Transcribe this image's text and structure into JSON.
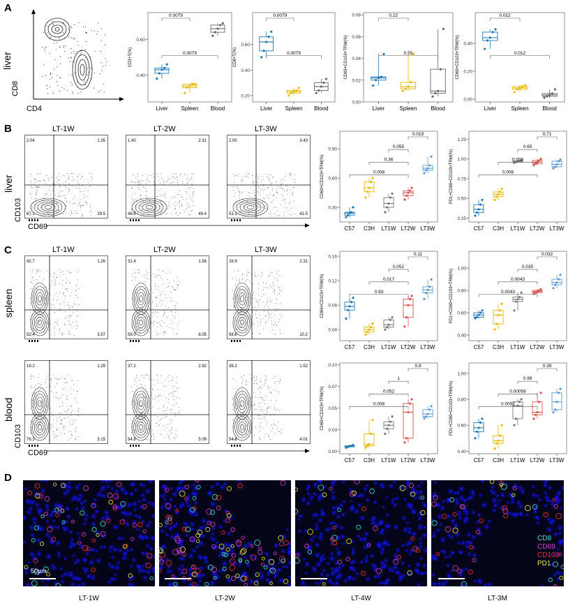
{
  "panels": [
    "A",
    "B",
    "C",
    "D"
  ],
  "axis_labels": {
    "liver": "liver",
    "spleen": "spleen",
    "blood": "blood",
    "cd8": "CD8",
    "cd4": "CD4",
    "cd103": "CD103",
    "cd69": "CD69"
  },
  "flow_titles": [
    "LT-1W",
    "LT-2W",
    "LT-3W"
  ],
  "flowB": [
    [
      "2.04",
      "1.35",
      "67.1",
      "29.5"
    ],
    [
      "1.40",
      "2.31",
      "46.9",
      "49.4"
    ],
    [
      "2.00",
      "3.43",
      "53.1",
      "41.5"
    ]
  ],
  "flowC_spleen": [
    [
      "42.7",
      "1.26",
      "52.4",
      "3.57"
    ],
    [
      "31.4",
      "1.56",
      "59.0",
      "8.05"
    ],
    [
      "28.9",
      "2.31",
      "58.6",
      "10.2"
    ]
  ],
  "flowC_blood": [
    [
      "19.2",
      "1.29",
      "76.3",
      "3.15"
    ],
    [
      "37.2",
      "2.92",
      "54.8",
      "5.09"
    ],
    [
      "39.2",
      "1.52",
      "54.8",
      "4.01"
    ]
  ],
  "micro": {
    "captions": [
      "LT-1W",
      "LT-2W",
      "LT-4W",
      "LT-3M"
    ],
    "scale": "50μm",
    "legend": [
      {
        "label": "CD8",
        "color": "#4fe0d8"
      },
      {
        "label": "CD69",
        "color": "#d040d0"
      },
      {
        "label": "CD103",
        "color": "#e83030"
      },
      {
        "label": "PD1",
        "color": "#e8e840"
      }
    ]
  },
  "chart_data": [
    {
      "type": "box",
      "panel": "A",
      "ylabel": "CD3+T(%)",
      "categories": [
        "Liver",
        "Spleen",
        "Blood"
      ],
      "ylim": [
        0.25,
        0.75
      ],
      "ticks": [
        0.4,
        0.6
      ],
      "colors": [
        "#1f77b4",
        "#e6b800",
        "#666666"
      ],
      "values": [
        [
          0.38,
          0.41,
          0.43,
          0.44,
          0.46
        ],
        [
          0.3,
          0.33,
          0.34,
          0.35,
          0.35
        ],
        [
          0.62,
          0.64,
          0.66,
          0.68,
          0.69
        ]
      ],
      "brackets": [
        {
          "from": 0,
          "to": 2,
          "label": "0.0079"
        },
        {
          "from": 0,
          "to": 1,
          "label": "0.0079"
        }
      ]
    },
    {
      "type": "box",
      "panel": "A",
      "ylabel": "CD8+T(%)",
      "categories": [
        "Liver",
        "Spleen",
        "Blood"
      ],
      "ylim": [
        0.15,
        0.85
      ],
      "ticks": [
        0.2,
        0.4,
        0.6
      ],
      "colors": [
        "#1f77b4",
        "#e6b800",
        "#666666"
      ],
      "values": [
        [
          0.5,
          0.55,
          0.62,
          0.66,
          0.7
        ],
        [
          0.2,
          0.22,
          0.23,
          0.24,
          0.26
        ],
        [
          0.22,
          0.24,
          0.27,
          0.3,
          0.33
        ]
      ],
      "brackets": [
        {
          "from": 0,
          "to": 2,
          "label": "0.0079"
        },
        {
          "from": 0,
          "to": 1,
          "label": "0.0079"
        }
      ]
    },
    {
      "type": "box",
      "panel": "A",
      "ylabel": "CD69+CD103+TRM(%)",
      "categories": [
        "Liver",
        "Spleen",
        "Blood"
      ],
      "ylim": [
        0.0,
        0.082
      ],
      "ticks": [
        0.0,
        0.02,
        0.04,
        0.06,
        0.08
      ],
      "colors": [
        "#1f77b4",
        "#e6b800",
        "#666666"
      ],
      "values": [
        [
          0.015,
          0.02,
          0.022,
          0.023,
          0.044
        ],
        [
          0.01,
          0.012,
          0.014,
          0.018,
          0.044
        ],
        [
          0.005,
          0.008,
          0.01,
          0.03,
          0.067
        ]
      ],
      "brackets": [
        {
          "from": 0,
          "to": 2,
          "label": "0.55"
        },
        {
          "from": 0,
          "to": 1,
          "label": "0.22"
        }
      ]
    },
    {
      "type": "box",
      "panel": "A",
      "ylabel": "CD69+CD103+TRM(%)",
      "categories": [
        "Liver",
        "Spleen",
        "Blood"
      ],
      "ylim": [
        -0.02,
        0.62
      ],
      "ticks": [
        0.0,
        0.2,
        0.4
      ],
      "colors": [
        "#1f77b4",
        "#e6b800",
        "#666666"
      ],
      "values": [
        [
          0.36,
          0.42,
          0.44,
          0.48,
          0.5
        ],
        [
          0.05,
          0.07,
          0.08,
          0.09,
          0.1
        ],
        [
          0.01,
          0.02,
          0.03,
          0.04,
          0.07
        ]
      ],
      "brackets": [
        {
          "from": 0,
          "to": 2,
          "label": "0.012"
        },
        {
          "from": 0,
          "to": 1,
          "label": "0.012"
        }
      ]
    },
    {
      "type": "box",
      "panel": "B",
      "ylabel": "CD69+CD103+TRM(%)",
      "categories": [
        "C57",
        "C3H",
        "LT1W",
        "LT2W",
        "LT3W"
      ],
      "ylim": [
        0.15,
        1.08
      ],
      "ticks": [
        0.3,
        0.6,
        0.9
      ],
      "colors": [
        "#1f77b4",
        "#e6b800",
        "#777777",
        "#d9534f",
        "#5b9bd5"
      ],
      "values": [
        [
          0.2,
          0.22,
          0.24,
          0.25,
          0.3
        ],
        [
          0.4,
          0.46,
          0.5,
          0.56,
          0.6
        ],
        [
          0.25,
          0.3,
          0.34,
          0.4,
          0.44
        ],
        [
          0.38,
          0.42,
          0.45,
          0.47,
          0.5
        ],
        [
          0.65,
          0.68,
          0.7,
          0.73,
          0.82
        ]
      ],
      "brackets": [
        {
          "from": 0,
          "to": 3,
          "label": "0.008"
        },
        {
          "from": 1,
          "to": 3,
          "label": "0.36"
        },
        {
          "from": 2,
          "to": 3,
          "label": "0.055"
        },
        {
          "from": 3,
          "to": 4,
          "label": "0.019"
        }
      ]
    },
    {
      "type": "box",
      "panel": "B",
      "ylabel": "PD1+CD69+CD103+TRM(%)",
      "categories": [
        "C57",
        "C3H",
        "LT1W",
        "LT2W",
        "LT3W"
      ],
      "ylim": [
        0.2,
        1.35
      ],
      "ticks": [
        0.25,
        0.5,
        0.75,
        1.0,
        1.25
      ],
      "colors": [
        "#1f77b4",
        "#e6b800",
        "#777777",
        "#d9534f",
        "#5b9bd5"
      ],
      "values": [
        [
          0.28,
          0.32,
          0.36,
          0.42,
          0.48
        ],
        [
          0.48,
          0.52,
          0.55,
          0.58,
          0.62
        ],
        [
          0.95,
          0.96,
          0.97,
          0.97,
          0.98
        ],
        [
          0.92,
          0.94,
          0.96,
          0.98,
          1.0
        ],
        [
          0.88,
          0.9,
          0.93,
          0.97,
          0.99
        ]
      ],
      "brackets": [
        {
          "from": 0,
          "to": 3,
          "label": "0.008"
        },
        {
          "from": 1,
          "to": 3,
          "label": "0.008"
        },
        {
          "from": 2,
          "to": 3,
          "label": "0.65"
        },
        {
          "from": 3,
          "to": 4,
          "label": "0.71"
        }
      ]
    },
    {
      "type": "box",
      "panel": "C",
      "ylabel": "CD69+CD103+TRM(%)",
      "categories": [
        "C57",
        "C3H",
        "LT1W",
        "LT2W",
        "LT3W"
      ],
      "ylim": [
        0.022,
        0.168
      ],
      "ticks": [
        0.04,
        0.08,
        0.12,
        0.16
      ],
      "colors": [
        "#1f77b4",
        "#e6b800",
        "#777777",
        "#d9534f",
        "#5b9bd5"
      ],
      "values": [
        [
          0.058,
          0.072,
          0.078,
          0.085,
          0.092
        ],
        [
          0.032,
          0.036,
          0.04,
          0.044,
          0.05
        ],
        [
          0.04,
          0.044,
          0.048,
          0.056,
          0.06
        ],
        [
          0.045,
          0.06,
          0.08,
          0.09,
          0.095
        ],
        [
          0.09,
          0.1,
          0.105,
          0.11,
          0.122
        ]
      ],
      "brackets": [
        {
          "from": 0,
          "to": 3,
          "label": "0.93"
        },
        {
          "from": 1,
          "to": 3,
          "label": "0.017"
        },
        {
          "from": 2,
          "to": 3,
          "label": "0.052"
        },
        {
          "from": 3,
          "to": 4,
          "label": "0.11"
        }
      ]
    },
    {
      "type": "box",
      "panel": "C",
      "ylabel": "PD1+CD69+CD103+TRM(%)",
      "categories": [
        "C57",
        "C3H",
        "LT1W",
        "LT2W",
        "LT3W"
      ],
      "ylim": [
        0.35,
        1.15
      ],
      "ticks": [
        0.4,
        0.6,
        0.8,
        1.0
      ],
      "colors": [
        "#1f77b4",
        "#e6b800",
        "#777777",
        "#d9534f",
        "#5b9bd5"
      ],
      "values": [
        [
          0.55,
          0.56,
          0.58,
          0.6,
          0.62
        ],
        [
          0.45,
          0.5,
          0.58,
          0.62,
          0.68
        ],
        [
          0.62,
          0.7,
          0.72,
          0.74,
          0.78
        ],
        [
          0.77,
          0.78,
          0.79,
          0.8,
          0.81
        ],
        [
          0.82,
          0.85,
          0.87,
          0.9,
          0.94
        ]
      ],
      "brackets": [
        {
          "from": 0,
          "to": 3,
          "label": "0.0043"
        },
        {
          "from": 1,
          "to": 3,
          "label": "0.0043"
        },
        {
          "from": 2,
          "to": 3,
          "label": "0.035"
        },
        {
          "from": 3,
          "to": 4,
          "label": "0.032"
        }
      ]
    },
    {
      "type": "box",
      "panel": "C",
      "ylabel": "CD69+CD103+TRM(%)",
      "categories": [
        "C57",
        "C3H",
        "LT1W",
        "LT2W",
        "LT3W"
      ],
      "ylim": [
        -0.003,
        0.102
      ],
      "ticks": [
        0.0,
        0.025,
        0.05,
        0.075,
        0.1
      ],
      "colors": [
        "#1f77b4",
        "#e6b800",
        "#777777",
        "#d9534f",
        "#5b9bd5"
      ],
      "values": [
        [
          0.004,
          0.005,
          0.006,
          0.006,
          0.007
        ],
        [
          0.004,
          0.006,
          0.008,
          0.02,
          0.036
        ],
        [
          0.02,
          0.026,
          0.03,
          0.034,
          0.04
        ],
        [
          0.01,
          0.015,
          0.045,
          0.055,
          0.06
        ],
        [
          0.038,
          0.04,
          0.043,
          0.048,
          0.052
        ]
      ],
      "brackets": [
        {
          "from": 0,
          "to": 3,
          "label": "0.008"
        },
        {
          "from": 1,
          "to": 3,
          "label": "0.052"
        },
        {
          "from": 2,
          "to": 3,
          "label": "1"
        },
        {
          "from": 3,
          "to": 4,
          "label": "0.9"
        }
      ]
    },
    {
      "type": "box",
      "panel": "C",
      "ylabel": "PD1+CD69+CD103+TRM(%)",
      "categories": [
        "C57",
        "C3H",
        "LT1W",
        "LT2W",
        "LT3W"
      ],
      "ylim": [
        0.38,
        1.08
      ],
      "ticks": [
        0.4,
        0.6,
        0.8,
        1.0
      ],
      "colors": [
        "#1f77b4",
        "#e6b800",
        "#777777",
        "#d9534f",
        "#5b9bd5"
      ],
      "values": [
        [
          0.5,
          0.55,
          0.58,
          0.62,
          0.65
        ],
        [
          0.42,
          0.46,
          0.48,
          0.52,
          0.6
        ],
        [
          0.6,
          0.65,
          0.75,
          0.78,
          0.8
        ],
        [
          0.65,
          0.68,
          0.7,
          0.78,
          0.85
        ],
        [
          0.7,
          0.72,
          0.78,
          0.85,
          0.88
        ]
      ],
      "brackets": [
        {
          "from": 0,
          "to": 3,
          "label": "0.0052"
        },
        {
          "from": 1,
          "to": 3,
          "label": "0.00058"
        },
        {
          "from": 2,
          "to": 3,
          "label": "0.99"
        },
        {
          "from": 3,
          "to": 4,
          "label": "0.39"
        }
      ]
    }
  ]
}
